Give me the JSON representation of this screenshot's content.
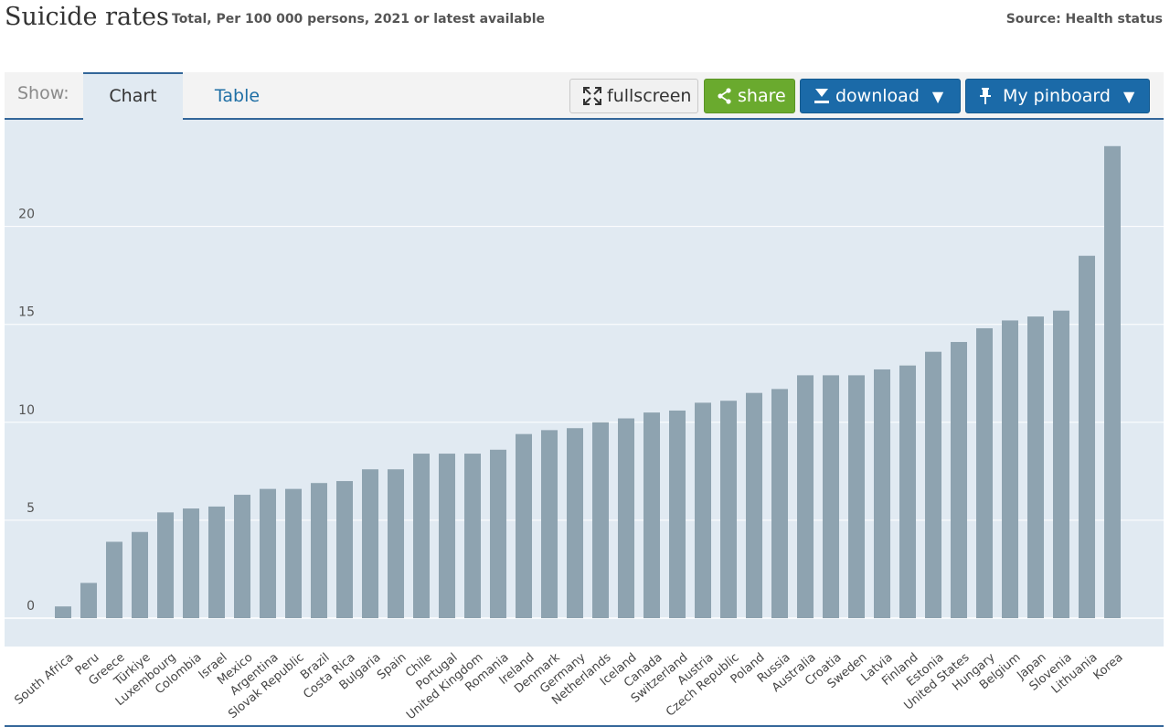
{
  "header": {
    "title": "Suicide rates",
    "subtitle": "Total, Per 100 000 persons, 2021 or latest available",
    "source": "Source: Health status"
  },
  "toolbar": {
    "show_label": "Show:",
    "tabs": [
      {
        "label": "Chart",
        "active": true
      },
      {
        "label": "Table",
        "active": false
      }
    ],
    "fullscreen_label": "fullscreen",
    "share_label": "share",
    "download_label": "download",
    "pinboard_label": "My pinboard",
    "dropdown_glyph": "▼"
  },
  "colors": {
    "bar": "#8ea3b0",
    "plot_background": "#e1eaf2",
    "share_button": "#6aaa2e",
    "primary_button": "#1b6aa8",
    "accent_line": "#336699"
  },
  "chart_data": {
    "type": "bar",
    "title": "Suicide rates",
    "subtitle": "Total, Per 100 000 persons, 2021 or latest available",
    "xlabel": "",
    "ylabel": "",
    "ylim": [
      -1.5,
      25
    ],
    "yticks": [
      0,
      5,
      10,
      15,
      20
    ],
    "grid": true,
    "legend": "none",
    "categories": [
      "South Africa",
      "Peru",
      "Greece",
      "Türkiye",
      "Luxembourg",
      "Colombia",
      "Israel",
      "Mexico",
      "Argentina",
      "Slovak Republic",
      "Brazil",
      "Costa Rica",
      "Bulgaria",
      "Spain",
      "Chile",
      "Portugal",
      "United Kingdom",
      "Romania",
      "Ireland",
      "Denmark",
      "Germany",
      "Netherlands",
      "Iceland",
      "Canada",
      "Switzerland",
      "Austria",
      "Czech Republic",
      "Poland",
      "Russia",
      "Australia",
      "Croatia",
      "Sweden",
      "Latvia",
      "Finland",
      "Estonia",
      "United States",
      "Hungary",
      "Belgium",
      "Japan",
      "Slovenia",
      "Lithuania",
      "Korea"
    ],
    "values": [
      0.6,
      1.8,
      3.9,
      4.4,
      5.4,
      5.6,
      5.7,
      6.3,
      6.6,
      6.6,
      6.9,
      7.0,
      7.6,
      7.6,
      8.4,
      8.4,
      8.4,
      8.6,
      9.4,
      9.6,
      9.7,
      10.0,
      10.2,
      10.5,
      10.6,
      11.0,
      11.1,
      11.5,
      11.7,
      12.4,
      12.4,
      12.4,
      12.7,
      12.9,
      13.6,
      14.1,
      14.8,
      15.2,
      15.4,
      15.7,
      18.5,
      24.1
    ]
  }
}
